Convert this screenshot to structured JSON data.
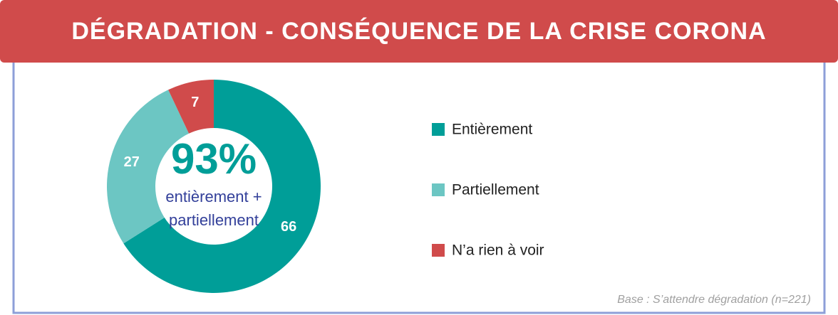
{
  "chart_data": {
    "type": "pie",
    "title": "DÉGRADATION - CONSÉQUENCE DE LA CRISE CORONA",
    "categories": [
      "Entièrement",
      "Partiellement",
      "N’a rien à voir"
    ],
    "values": [
      66,
      27,
      7
    ],
    "colors": [
      "#009e98",
      "#6cc6c3",
      "#d04b4b"
    ],
    "center_value": "93%",
    "center_text": [
      "entièrement +",
      "partiellement"
    ],
    "note": "Base : S’attendre dégradation (n=221)"
  }
}
